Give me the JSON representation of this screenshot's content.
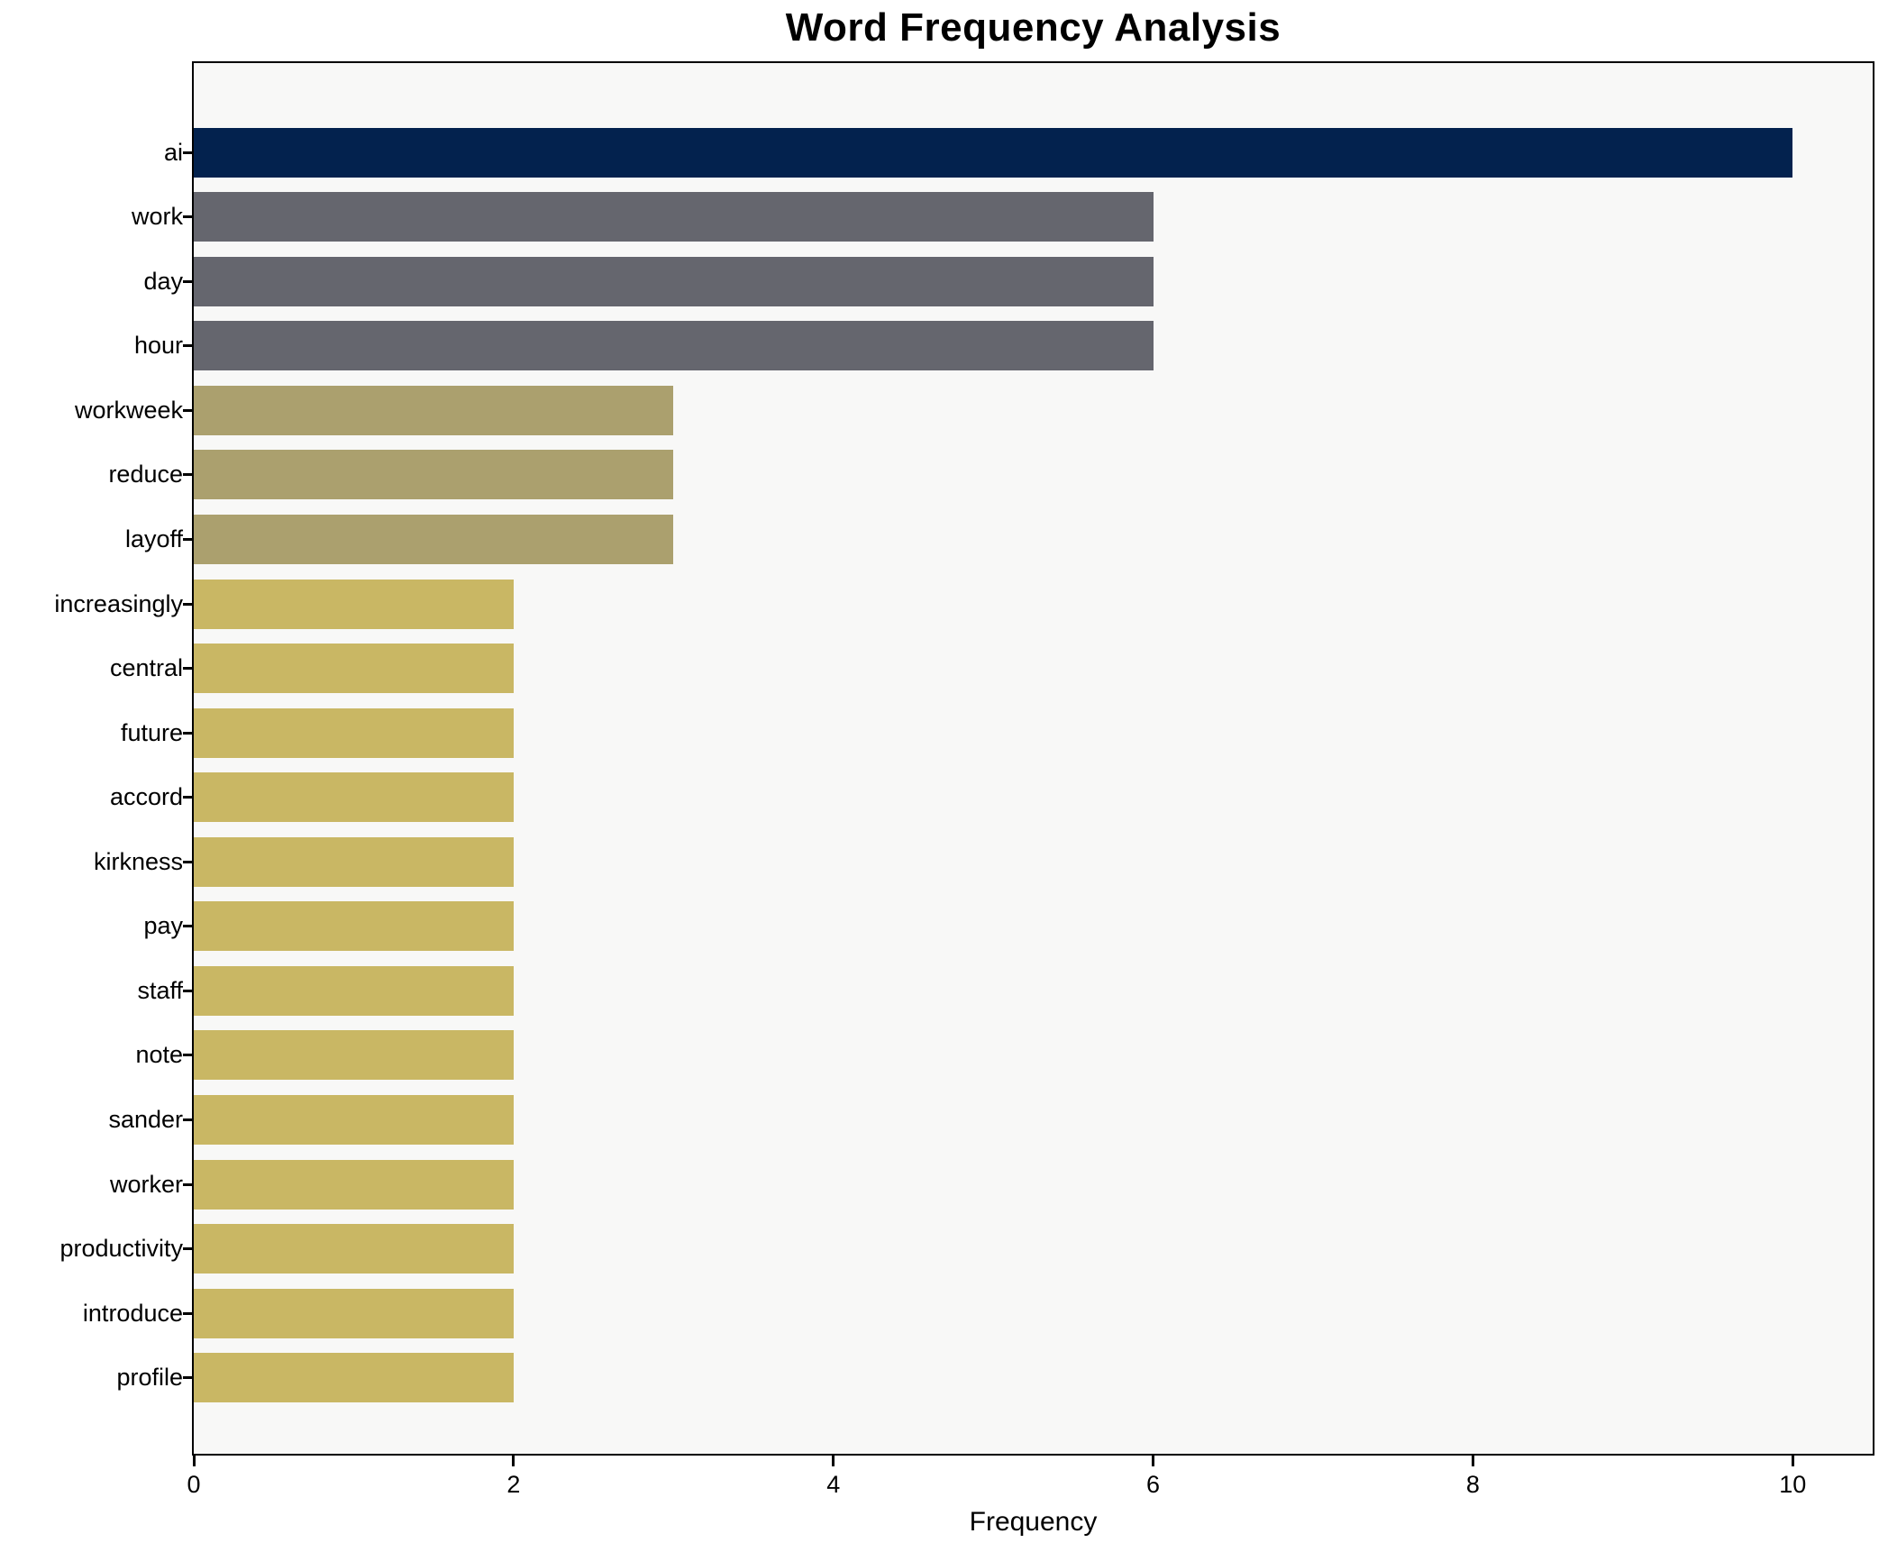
{
  "chart_data": {
    "type": "bar",
    "orientation": "horizontal",
    "title": "Word Frequency Analysis",
    "xlabel": "Frequency",
    "ylabel": "",
    "xlim": [
      0,
      10.5
    ],
    "xticks": [
      0,
      2,
      4,
      6,
      8,
      10
    ],
    "grid": false,
    "legend": null,
    "categories": [
      "ai",
      "work",
      "day",
      "hour",
      "workweek",
      "reduce",
      "layoff",
      "increasingly",
      "central",
      "future",
      "accord",
      "kirkness",
      "pay",
      "staff",
      "note",
      "sander",
      "worker",
      "productivity",
      "introduce",
      "profile"
    ],
    "values": [
      10,
      6,
      6,
      6,
      3,
      3,
      3,
      2,
      2,
      2,
      2,
      2,
      2,
      2,
      2,
      2,
      2,
      2,
      2,
      2
    ],
    "bar_colors": [
      "#03224e",
      "#65666e",
      "#65666e",
      "#65666e",
      "#aba06e",
      "#aba06e",
      "#aba06e",
      "#c9b764",
      "#c9b764",
      "#c9b764",
      "#c9b764",
      "#c9b764",
      "#c9b764",
      "#c9b764",
      "#c9b764",
      "#c9b764",
      "#c9b764",
      "#c9b764",
      "#c9b764",
      "#c9b764"
    ]
  },
  "colors": {
    "navy": "#03224e",
    "gray": "#65666e",
    "olive": "#aba06e",
    "gold": "#c9b764",
    "plot_background": "#f8f8f7",
    "figure_background": "#ffffff",
    "spine": "#000000",
    "text": "#000000"
  }
}
